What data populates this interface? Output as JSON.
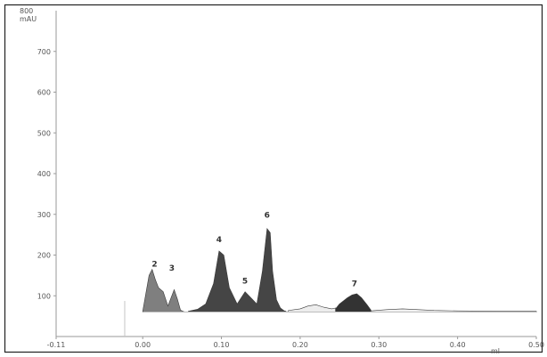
{
  "chart_data": {
    "type": "area",
    "title": "",
    "xlabel": "",
    "ylabel": "",
    "y_unit": "mAU",
    "y_top_label": "800",
    "x_end_label": "ml",
    "xlim": [
      -0.11,
      0.5
    ],
    "ylim": [
      0,
      800
    ],
    "yticks": [
      {
        "value": 700,
        "label": "700"
      },
      {
        "value": 600,
        "label": "600"
      },
      {
        "value": 500,
        "label": "500"
      },
      {
        "value": 400,
        "label": "400"
      },
      {
        "value": 300,
        "label": "300"
      },
      {
        "value": 200,
        "label": "200"
      },
      {
        "value": 100,
        "label": "100"
      }
    ],
    "xticks": [
      {
        "value": -0.11,
        "label": "-0.11"
      },
      {
        "value": 0.0,
        "label": "0.00"
      },
      {
        "value": 0.1,
        "label": "0.10"
      },
      {
        "value": 0.2,
        "label": "0.20"
      },
      {
        "value": 0.3,
        "label": "0.30"
      },
      {
        "value": 0.4,
        "label": "0.40"
      },
      {
        "value": 0.5,
        "label": "0.50"
      }
    ],
    "baseline": 60,
    "series": [
      {
        "x": [
          0.0,
          0.008,
          0.012,
          0.016,
          0.02,
          0.026,
          0.032,
          0.036,
          0.04,
          0.044,
          0.048,
          0.051,
          0.054
        ],
        "y": [
          62,
          150,
          165,
          140,
          120,
          110,
          75,
          95,
          115,
          92,
          65,
          62,
          60
        ],
        "color": "#7f7f7f"
      },
      {
        "x": [
          0.058,
          0.07,
          0.08,
          0.09,
          0.097,
          0.103,
          0.11,
          0.12,
          0.13,
          0.14,
          0.145,
          0.152,
          0.158,
          0.162,
          0.165,
          0.17,
          0.175,
          0.18,
          0.182
        ],
        "y": [
          62,
          67,
          80,
          130,
          210,
          200,
          120,
          80,
          110,
          90,
          80,
          160,
          265,
          255,
          160,
          90,
          70,
          63,
          62
        ],
        "color": "#454545"
      },
      {
        "x": [
          0.185,
          0.2,
          0.21,
          0.22,
          0.23,
          0.24,
          0.245
        ],
        "y": [
          64,
          68,
          75,
          78,
          72,
          68,
          70
        ],
        "color": "#ededed"
      },
      {
        "x": [
          0.245,
          0.25,
          0.26,
          0.266,
          0.272,
          0.278,
          0.285,
          0.29
        ],
        "y": [
          68,
          80,
          95,
          102,
          105,
          95,
          78,
          65
        ],
        "color": "#333333"
      },
      {
        "x": [
          0.29,
          0.31,
          0.33,
          0.35,
          0.37,
          0.4,
          0.45,
          0.5
        ],
        "y": [
          63,
          66,
          68,
          66,
          64,
          63,
          62,
          62
        ],
        "color": "#f2f2f2"
      }
    ],
    "peak_labels": [
      {
        "label": "2",
        "x": 0.015,
        "y": 172
      },
      {
        "label": "3",
        "x": 0.037,
        "y": 162
      },
      {
        "label": "4",
        "x": 0.097,
        "y": 232
      },
      {
        "label": "5",
        "x": 0.13,
        "y": 130
      },
      {
        "label": "6",
        "x": 0.158,
        "y": 292
      },
      {
        "label": "7",
        "x": 0.269,
        "y": 124
      }
    ]
  }
}
